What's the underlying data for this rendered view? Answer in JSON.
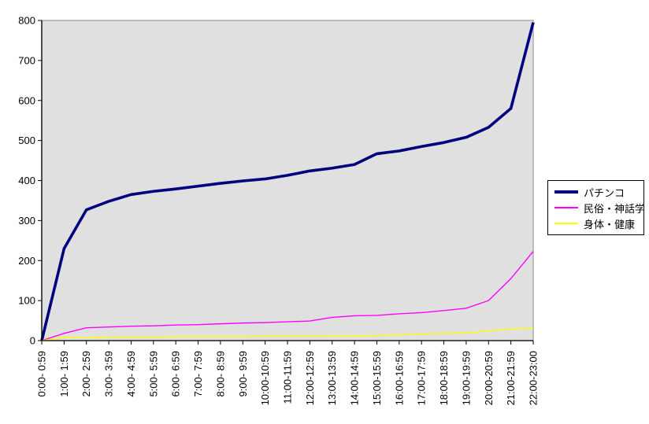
{
  "chart_data": {
    "type": "line",
    "title": "",
    "xlabel": "",
    "ylabel": "",
    "categories": [
      "0:00- 0:59",
      "1:00- 1:59",
      "2:00- 2:59",
      "3:00- 3:59",
      "4:00- 4:59",
      "5:00- 5:59",
      "6:00- 6:59",
      "7:00- 7:59",
      "8:00- 8:59",
      "9:00- 9:59",
      "10:00-10:59",
      "11:00-11:59",
      "12:00-12:59",
      "13:00-13:59",
      "14:00-14:59",
      "15:00-15:59",
      "16:00-16:59",
      "17:00-17:59",
      "18:00-18:59",
      "19:00-19:59",
      "20:00-20:59",
      "21:00-21:59",
      "22:00-23:00"
    ],
    "series": [
      {
        "name": "パチンコ",
        "color": "#000080",
        "width": 3.6,
        "values": [
          0,
          230,
          327,
          348,
          365,
          373,
          379,
          386,
          393,
          399,
          404,
          413,
          424,
          431,
          440,
          467,
          474,
          485,
          495,
          508,
          533,
          580,
          795
        ]
      },
      {
        "name": "民俗・神話学",
        "color": "#FF00FF",
        "width": 1.4,
        "values": [
          0,
          18,
          32,
          34,
          36,
          37,
          39,
          40,
          42,
          44,
          45,
          47,
          49,
          58,
          62,
          63,
          67,
          70,
          75,
          81,
          100,
          155,
          223
        ]
      },
      {
        "name": "身体・健康",
        "color": "#FFFF00",
        "width": 1.4,
        "values": [
          0,
          8,
          8,
          9,
          9,
          9,
          10,
          10,
          10,
          10,
          11,
          11,
          11,
          12,
          12,
          13,
          14,
          16,
          18,
          19,
          24,
          29,
          31
        ]
      }
    ],
    "ylim": [
      0,
      800
    ],
    "ytick_interval": 100,
    "ytick_labels": [
      "0",
      "100",
      "200",
      "300",
      "400",
      "500",
      "600",
      "700",
      "800"
    ],
    "grid": "off",
    "legend_position": "right",
    "plot_bg": "#E0E0E0",
    "plot_border": "#999999",
    "axis_color": "#000000",
    "background": "#FFFFFF"
  }
}
